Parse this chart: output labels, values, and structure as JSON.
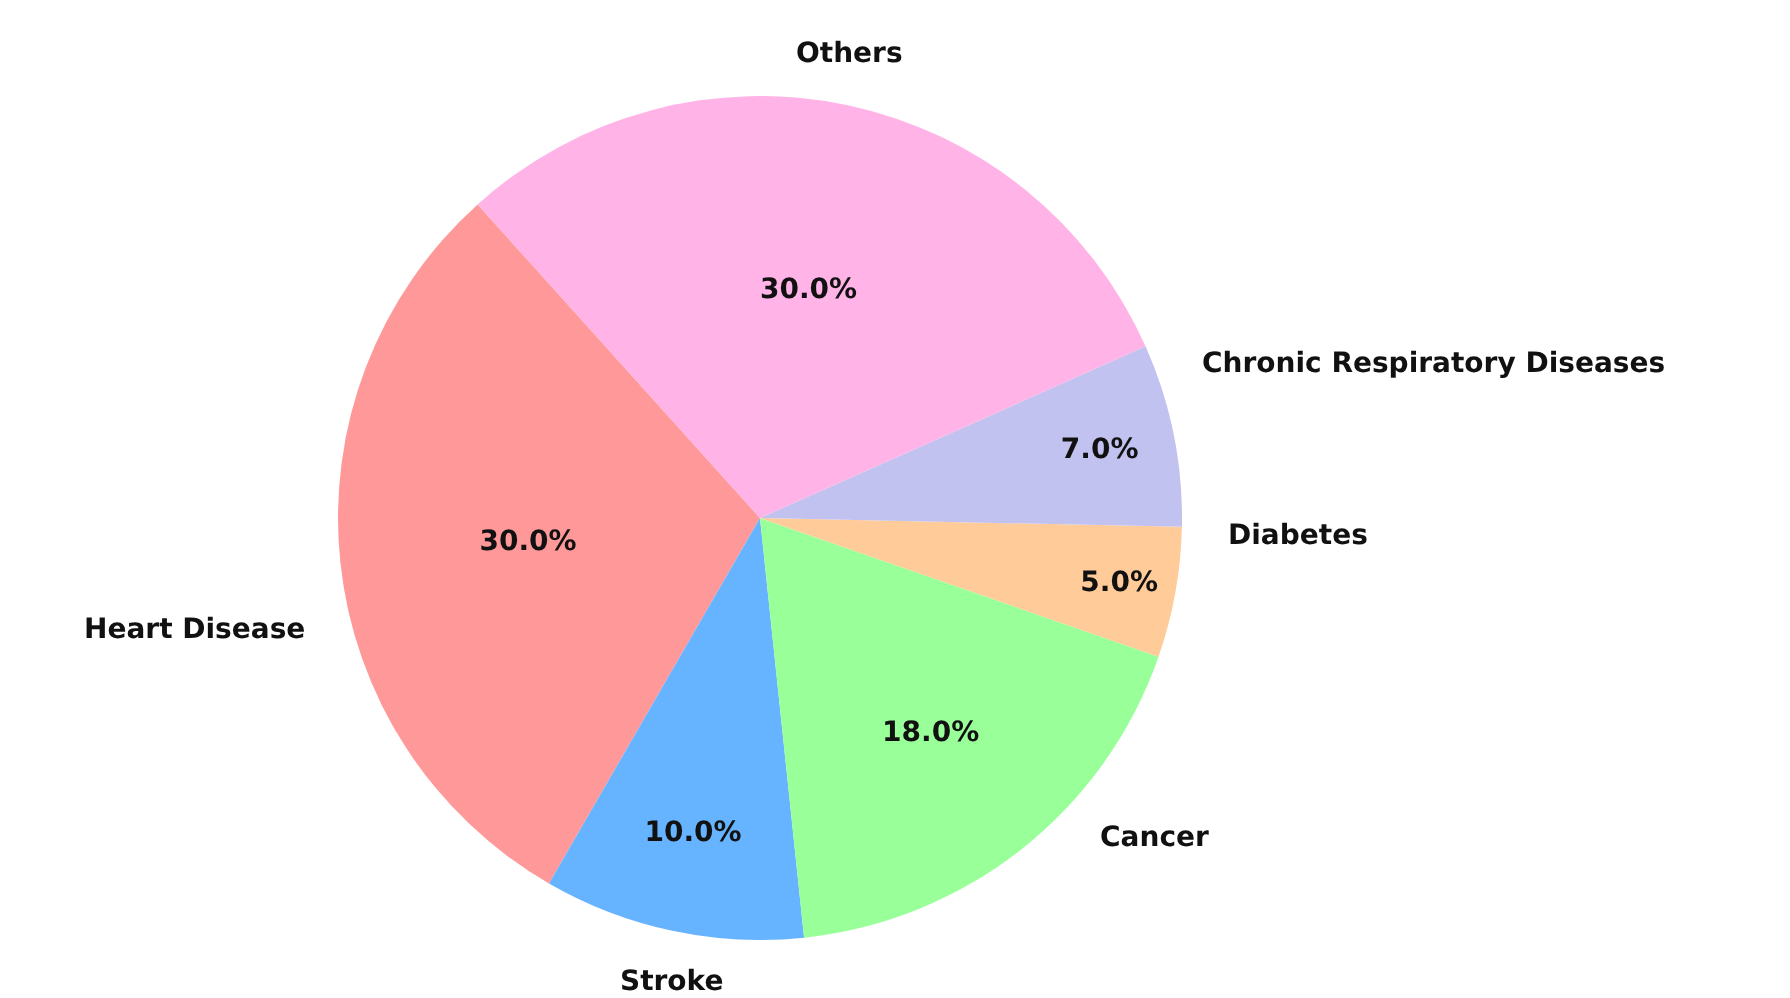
{
  "chart_data": {
    "type": "pie",
    "categories": [
      "Heart Disease",
      "Stroke",
      "Cancer",
      "Diabetes",
      "Chronic Respiratory Diseases",
      "Others"
    ],
    "values": [
      30,
      10,
      18,
      5,
      7,
      30
    ],
    "colors": [
      "#ff9999",
      "#66b3ff",
      "#99ff99",
      "#ffcc99",
      "#c2c2f0",
      "#ffb3e6"
    ],
    "value_labels": [
      "30.0%",
      "10.0%",
      "18.0%",
      "5.0%",
      "7.0%",
      "30.0%"
    ],
    "legend": false
  }
}
